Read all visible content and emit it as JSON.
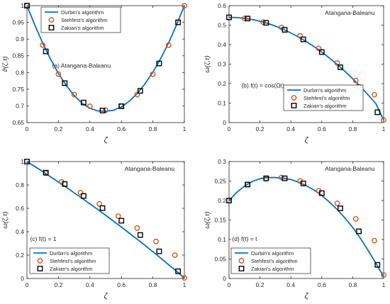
{
  "figure": {
    "colors": {
      "durbin_line": "#0072BD",
      "stehfest_marker": "#D95319",
      "zakian_marker": "#000000",
      "axes": "#262626"
    }
  },
  "chart_data": [
    {
      "type": "line",
      "panel_label": "(a) Atangana-Baleanu",
      "title": "",
      "subtitle": "",
      "xlabel": "ζ",
      "ylabel": "ϑ(ζ,τ)",
      "xlim": [
        0,
        1
      ],
      "ylim": [
        0.65,
        1
      ],
      "xticks": [
        0,
        0.2,
        0.4,
        0.6,
        0.8,
        1
      ],
      "yticks": [
        0.65,
        0.7,
        0.75,
        0.8,
        0.85,
        0.9,
        0.95,
        1
      ],
      "xtick_labels": [
        "0",
        "0.2",
        "0.4",
        "0.6",
        "0.8",
        "1"
      ],
      "ytick_labels": [
        "0.65",
        "0.7",
        "0.75",
        "0.8",
        "0.85",
        "0.9",
        "0.95",
        "1"
      ],
      "annotations": [],
      "legend": {
        "placement": "top-center",
        "entries": [
          "Durbin's algorithm",
          "Stehfest's algorithm",
          "Zakian's algorithm"
        ]
      },
      "series": [
        {
          "name": "Durbin's algorithm",
          "style": "line",
          "x": [
            0,
            0.05,
            0.1,
            0.15,
            0.2,
            0.25,
            0.3,
            0.35,
            0.4,
            0.45,
            0.5,
            0.55,
            0.6,
            0.65,
            0.7,
            0.75,
            0.8,
            0.85,
            0.9,
            0.95,
            1
          ],
          "y": [
            1.0,
            0.942,
            0.888,
            0.84,
            0.797,
            0.761,
            0.731,
            0.708,
            0.693,
            0.685,
            0.684,
            0.687,
            0.697,
            0.714,
            0.737,
            0.766,
            0.801,
            0.842,
            0.889,
            0.942,
            1.0
          ]
        },
        {
          "name": "Stehfest's algorithm",
          "style": "circle",
          "x": [
            0,
            0.1,
            0.2,
            0.3,
            0.4,
            0.5,
            0.6,
            0.7,
            0.8,
            0.9,
            1
          ],
          "y": [
            1.0,
            0.882,
            0.795,
            0.734,
            0.699,
            0.687,
            0.699,
            0.734,
            0.795,
            0.882,
            1.0
          ]
        },
        {
          "name": "Zakian's algorithm",
          "style": "square",
          "x": [
            0,
            0.12,
            0.24,
            0.36,
            0.48,
            0.6,
            0.72,
            0.84,
            0.96
          ],
          "y": [
            1.0,
            0.863,
            0.768,
            0.71,
            0.686,
            0.699,
            0.745,
            0.827,
            0.95
          ]
        }
      ]
    },
    {
      "type": "line",
      "panel_label": "(b) f(t) = cos(Ωt)",
      "title": "",
      "subtitle": "",
      "xlabel": "ζ",
      "ylabel": "ω(ζ,τ)",
      "xlim": [
        0,
        1
      ],
      "ylim": [
        0,
        0.6
      ],
      "xticks": [
        0,
        0.2,
        0.4,
        0.6,
        0.8,
        1
      ],
      "yticks": [
        0,
        0.1,
        0.2,
        0.3,
        0.4,
        0.5,
        0.6
      ],
      "xtick_labels": [
        "0",
        "0.2",
        "0.4",
        "0.6",
        "0.8",
        "1"
      ],
      "ytick_labels": [
        "0",
        "0.1",
        "0.2",
        "0.3",
        "0.4",
        "0.5",
        "0.6"
      ],
      "annotations": [
        "Atangana-Baleanu"
      ],
      "legend": {
        "placement": "bottom-right",
        "entries": [
          "Durbin's algorithm",
          "Stehfest's algorithm",
          "Zakian's algorithm"
        ]
      },
      "series": [
        {
          "name": "Durbin's algorithm",
          "style": "line",
          "x": [
            0,
            0.05,
            0.1,
            0.15,
            0.2,
            0.25,
            0.3,
            0.35,
            0.4,
            0.45,
            0.5,
            0.55,
            0.6,
            0.65,
            0.7,
            0.75,
            0.8,
            0.85,
            0.9,
            0.95,
            1
          ],
          "y": [
            0.54,
            0.539,
            0.535,
            0.529,
            0.52,
            0.509,
            0.495,
            0.479,
            0.46,
            0.439,
            0.416,
            0.39,
            0.362,
            0.331,
            0.298,
            0.263,
            0.225,
            0.185,
            0.142,
            0.097,
            0.013
          ]
        },
        {
          "name": "Stehfest's algorithm",
          "style": "circle",
          "x": [
            0.1,
            0.22,
            0.34,
            0.46,
            0.58,
            0.7,
            0.82,
            0.94,
            1
          ],
          "y": [
            0.535,
            0.516,
            0.488,
            0.445,
            0.381,
            0.306,
            0.216,
            0.143,
            0.013
          ]
        },
        {
          "name": "Zakian's algorithm",
          "style": "square",
          "x": [
            0,
            0.12,
            0.24,
            0.36,
            0.48,
            0.6,
            0.72,
            0.84,
            0.96
          ],
          "y": [
            0.54,
            0.534,
            0.512,
            0.476,
            0.427,
            0.362,
            0.284,
            0.181,
            0.053
          ]
        }
      ]
    },
    {
      "type": "line",
      "panel_label": "(c) f(t) = 1",
      "title": "",
      "subtitle": "",
      "xlabel": "ζ",
      "ylabel": "ω(ζ,τ)",
      "xlim": [
        0,
        1
      ],
      "ylim": [
        0,
        1
      ],
      "xticks": [
        0,
        0.2,
        0.4,
        0.6,
        0.8,
        1
      ],
      "yticks": [
        0,
        0.2,
        0.4,
        0.6,
        0.8,
        1
      ],
      "xtick_labels": [
        "0",
        "0.2",
        "0.4",
        "0.6",
        "0.8",
        "1"
      ],
      "ytick_labels": [
        "0",
        "0.2",
        "0.4",
        "0.6",
        "0.8",
        "1"
      ],
      "annotations": [
        "Atangana-Baleanu"
      ],
      "legend": {
        "placement": "bottom-left",
        "entries": [
          "Durbin's algorithm",
          "Stehfest's algorithm",
          "Zakian's algorithm"
        ]
      },
      "series": [
        {
          "name": "Durbin's algorithm",
          "style": "line",
          "x": [
            0,
            0.05,
            0.1,
            0.15,
            0.2,
            0.25,
            0.3,
            0.35,
            0.4,
            0.45,
            0.5,
            0.55,
            0.6,
            0.65,
            0.7,
            0.75,
            0.8,
            0.85,
            0.9,
            0.95,
            1
          ],
          "y": [
            1.0,
            0.958,
            0.915,
            0.87,
            0.825,
            0.78,
            0.733,
            0.686,
            0.638,
            0.59,
            0.54,
            0.49,
            0.44,
            0.388,
            0.336,
            0.283,
            0.229,
            0.174,
            0.118,
            0.062,
            0.005
          ]
        },
        {
          "name": "Stehfest's algorithm",
          "style": "circle",
          "x": [
            0.12,
            0.22,
            0.34,
            0.46,
            0.58,
            0.7,
            0.82,
            0.94,
            1
          ],
          "y": [
            0.9,
            0.826,
            0.735,
            0.638,
            0.533,
            0.432,
            0.317,
            0.2,
            0.005
          ]
        },
        {
          "name": "Zakian's algorithm",
          "style": "square",
          "x": [
            0,
            0.12,
            0.24,
            0.36,
            0.48,
            0.6,
            0.72,
            0.84,
            0.96
          ],
          "y": [
            1.0,
            0.905,
            0.808,
            0.706,
            0.602,
            0.494,
            0.372,
            0.232,
            0.062
          ]
        }
      ]
    },
    {
      "type": "line",
      "panel_label": "(d) f(t) = t",
      "title": "",
      "subtitle": "",
      "xlabel": "ζ",
      "ylabel": "ω(ζ,τ)",
      "xlim": [
        0,
        1
      ],
      "ylim": [
        0,
        0.3
      ],
      "xticks": [
        0,
        0.2,
        0.4,
        0.6,
        0.8,
        1
      ],
      "yticks": [
        0,
        0.05,
        0.1,
        0.15,
        0.2,
        0.25,
        0.3
      ],
      "xtick_labels": [
        "0",
        "0.2",
        "0.4",
        "0.6",
        "0.8",
        "1"
      ],
      "ytick_labels": [
        "0",
        "0.05",
        "0.1",
        "0.15",
        "0.2",
        "0.25",
        "0.3"
      ],
      "annotations": [
        "Atangana-Baleanu"
      ],
      "legend": {
        "placement": "bottom-left",
        "entries": [
          "Durbin's algorithm",
          "Stehfest's algorithm",
          "Zakian's algorithm"
        ]
      },
      "series": [
        {
          "name": "Durbin's algorithm",
          "style": "line",
          "x": [
            0,
            0.05,
            0.1,
            0.15,
            0.2,
            0.25,
            0.3,
            0.35,
            0.4,
            0.45,
            0.5,
            0.55,
            0.6,
            0.65,
            0.7,
            0.75,
            0.8,
            0.85,
            0.9,
            0.95,
            1
          ],
          "y": [
            0.2,
            0.221,
            0.237,
            0.249,
            0.256,
            0.259,
            0.259,
            0.257,
            0.254,
            0.247,
            0.238,
            0.227,
            0.213,
            0.196,
            0.177,
            0.155,
            0.131,
            0.103,
            0.072,
            0.039,
            0.005
          ]
        },
        {
          "name": "Stehfest's algorithm",
          "style": "circle",
          "x": [
            0.12,
            0.24,
            0.34,
            0.46,
            0.58,
            0.7,
            0.82,
            0.94,
            1
          ],
          "y": [
            0.241,
            0.256,
            0.259,
            0.25,
            0.225,
            0.193,
            0.153,
            0.097,
            0.009
          ]
        },
        {
          "name": "Zakian's algorithm",
          "style": "square",
          "x": [
            0,
            0.12,
            0.24,
            0.36,
            0.48,
            0.6,
            0.72,
            0.84,
            0.96
          ],
          "y": [
            0.2,
            0.241,
            0.257,
            0.257,
            0.244,
            0.219,
            0.18,
            0.121,
            0.035
          ]
        }
      ]
    }
  ]
}
